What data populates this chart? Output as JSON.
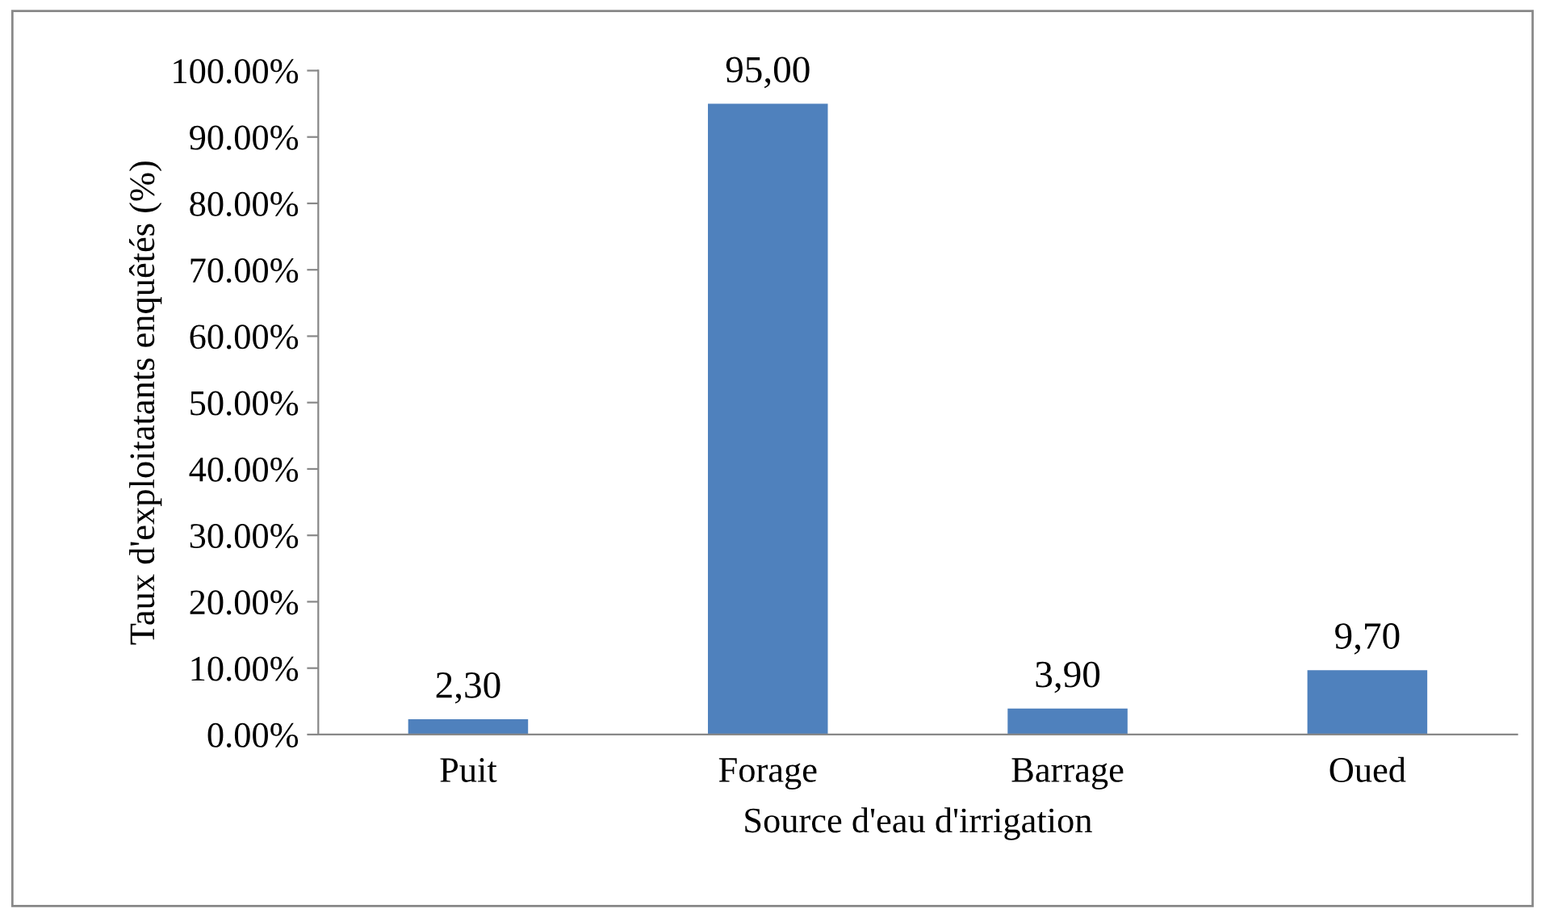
{
  "chart_data": {
    "type": "bar",
    "xlabel": "Source d'eau d'irrigation",
    "ylabel": "Taux d'exploitatants enquêtés (%)",
    "categories": [
      "Puit",
      "Forage",
      "Barrage",
      "Oued"
    ],
    "series": [
      {
        "color": "#4f81bd",
        "values": [
          2.3,
          95.0,
          3.9,
          9.7
        ],
        "value_labels": [
          "2,30",
          "95,00",
          "3,90",
          "9,70"
        ]
      }
    ],
    "ylim": [
      0,
      100
    ],
    "yticks": [
      {
        "value": 0,
        "label": "0.00%"
      },
      {
        "value": 10,
        "label": "10.00%"
      },
      {
        "value": 20,
        "label": "20.00%"
      },
      {
        "value": 30,
        "label": "30.00%"
      },
      {
        "value": 40,
        "label": "40.00%"
      },
      {
        "value": 50,
        "label": "50.00%"
      },
      {
        "value": 60,
        "label": "60.00%"
      },
      {
        "value": 70,
        "label": "70.00%"
      },
      {
        "value": 80,
        "label": "80.00%"
      },
      {
        "value": 90,
        "label": "90.00%"
      },
      {
        "value": 100,
        "label": "100.00%"
      }
    ],
    "grid": false
  }
}
